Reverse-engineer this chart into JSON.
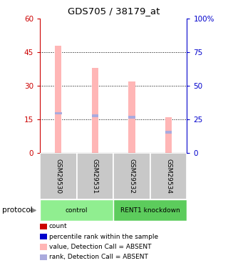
{
  "title": "GDS705 / 38179_at",
  "samples": [
    "GSM29530",
    "GSM29531",
    "GSM29532",
    "GSM29534"
  ],
  "groups": [
    {
      "label": "control",
      "color": "#90EE90",
      "count": 2
    },
    {
      "label": "RENT1 knockdown",
      "color": "#5CCC5C",
      "count": 2
    }
  ],
  "bar_values": [
    48,
    38,
    32,
    16
  ],
  "rank_values": [
    29.5,
    27.5,
    26.5,
    15.5
  ],
  "bar_color_absent": "#FFB6B6",
  "rank_color_absent": "#AAAADD",
  "ylim_left": [
    0,
    60
  ],
  "ylim_right": [
    0,
    100
  ],
  "yticks_left": [
    0,
    15,
    30,
    45,
    60
  ],
  "ytick_labels_left": [
    "0",
    "15",
    "30",
    "45",
    "60"
  ],
  "yticks_right": [
    0,
    25,
    50,
    75,
    100
  ],
  "ytick_labels_right": [
    "0",
    "25",
    "50",
    "75",
    "100%"
  ],
  "left_axis_color": "#CC0000",
  "right_axis_color": "#0000CC",
  "bg_color": "#FFFFFF",
  "legend_items": [
    {
      "color": "#CC0000",
      "label": "count"
    },
    {
      "color": "#0000CC",
      "label": "percentile rank within the sample"
    },
    {
      "color": "#FFB6B6",
      "label": "value, Detection Call = ABSENT"
    },
    {
      "color": "#AAAADD",
      "label": "rank, Detection Call = ABSENT"
    }
  ],
  "sample_area_color": "#C8C8C8",
  "protocol_label": "protocol",
  "arrow_color": "#888888"
}
